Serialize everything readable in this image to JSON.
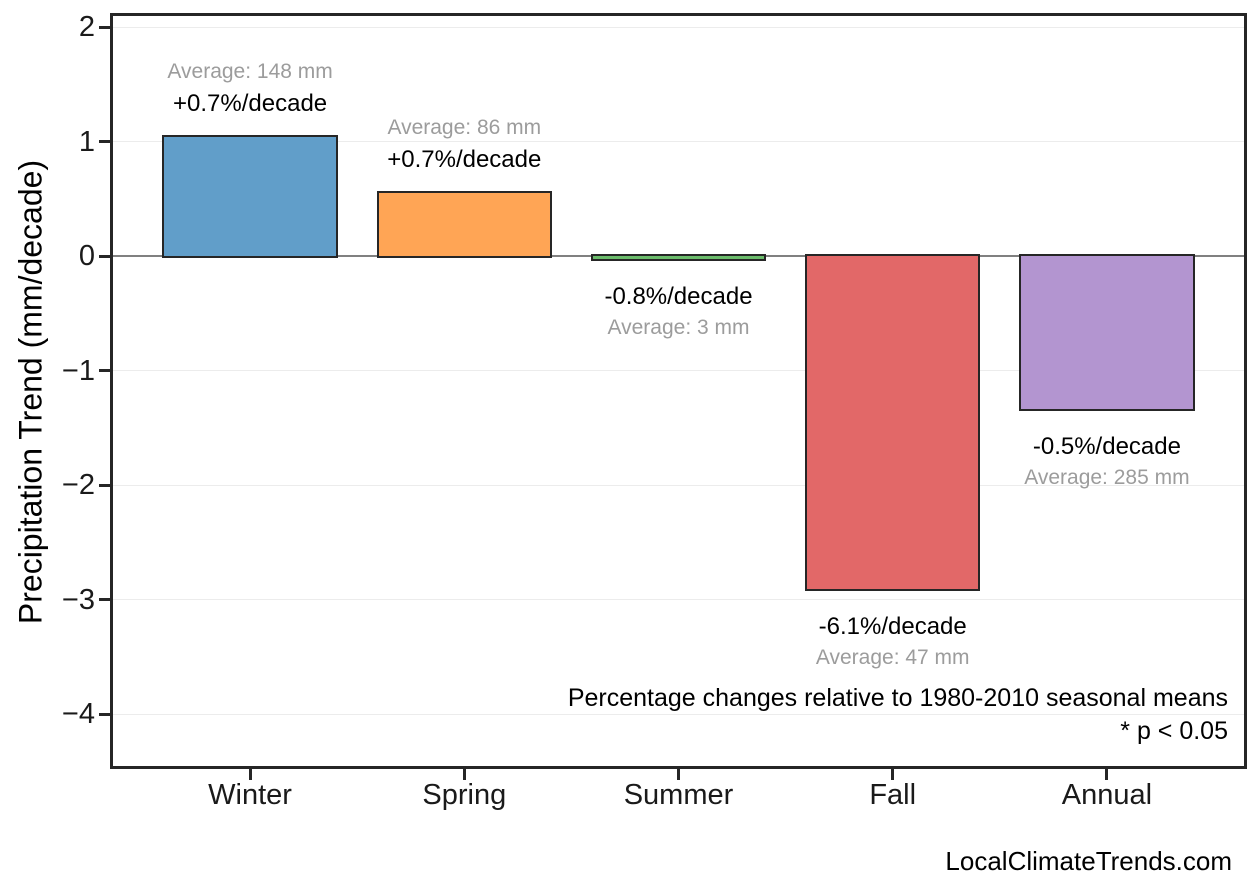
{
  "chart_data": {
    "type": "bar",
    "title": "",
    "categories": [
      "Winter",
      "Spring",
      "Summer",
      "Fall",
      "Annual"
    ],
    "values": [
      1.04,
      0.55,
      -0.025,
      -2.9,
      -1.33
    ],
    "value_unit": "mm/decade",
    "bar_labels": {
      "percent_change": [
        "+0.7%/decade",
        "+0.7%/decade",
        "-0.8%/decade",
        "-6.1%/decade",
        "-0.5%/decade"
      ],
      "averages": [
        "Average: 148 mm",
        "Average: 86 mm",
        "Average: 3 mm",
        "Average: 47 mm",
        "Average: 285 mm"
      ],
      "label_side": [
        "above",
        "above",
        "below",
        "below",
        "below"
      ]
    },
    "bar_colors": [
      "#619ec9",
      "#ffa555",
      "#6bbc6b",
      "#e26868",
      "#b395d0"
    ],
    "bar_edge_color": "#262626",
    "xlabel": "",
    "ylabel": "Precipitation Trend (mm/decade)",
    "ylim": [
      -4.45,
      2.1
    ],
    "yticks": [
      2,
      1,
      0,
      -1,
      -2,
      -3,
      -4
    ],
    "ytick_labels": [
      "2",
      "1",
      "0",
      "−1",
      "−2",
      "−3",
      "−4"
    ],
    "xlim_padding": 0.64,
    "bar_width_fraction": 0.8,
    "grid": "horizontal",
    "legend": "none",
    "gridline_color": "#ececec",
    "zero_line_color": "#808080",
    "text_colors": {
      "primary": "#000000",
      "secondary": "#9c9c9c"
    },
    "annotations": {
      "note_line1": "Percentage changes relative to 1980-2010 seasonal means",
      "note_line2": "* p < 0.05"
    },
    "watermark": "LocalClimateTrends.com"
  }
}
